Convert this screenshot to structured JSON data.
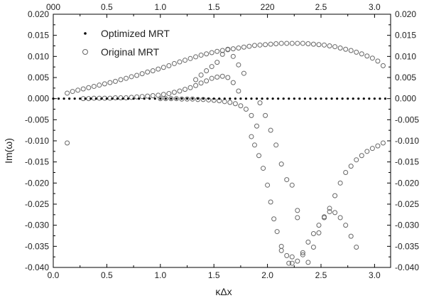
{
  "chart_data": {
    "type": "scatter",
    "xlabel": "κΔx",
    "ylabel": "Im(ω)",
    "xlim": [
      0.0,
      3.15
    ],
    "ylim": [
      -0.04,
      0.02
    ],
    "x_ticks": [
      "0.0",
      "0.5",
      "1.0",
      "1.5",
      "2.0",
      "2.5",
      "3.0"
    ],
    "x_tick_values": [
      0.0,
      0.5,
      1.0,
      1.5,
      2.0,
      2.5,
      3.0
    ],
    "top_ticks": [
      "0.0",
      "0.5",
      "1.0",
      "1.5",
      "2.0",
      "2.5",
      "3.0"
    ],
    "top_tick_display": [
      "000",
      "0.5",
      "1.0",
      "1.5",
      "220",
      "2.5",
      "3.0"
    ],
    "y_ticks": [
      "0.020",
      "0.015",
      "0.010",
      "0.005",
      "0.000",
      "-0.005",
      "-0.010",
      "-0.015",
      "-0.020",
      "-0.025",
      "-0.030",
      "-0.035",
      "-0.040"
    ],
    "y_tick_values": [
      0.02,
      0.015,
      0.01,
      0.005,
      0.0,
      -0.005,
      -0.01,
      -0.015,
      -0.02,
      -0.025,
      -0.03,
      -0.035,
      -0.04
    ],
    "grid": false,
    "legend_position": "top-left",
    "series": [
      {
        "name": "Optimized MRT",
        "marker": "filled-dot",
        "color": "#000000",
        "x": [
          0.0,
          0.05,
          0.1,
          0.15,
          0.2,
          0.25,
          0.3,
          0.35,
          0.4,
          0.45,
          0.5,
          0.55,
          0.6,
          0.65,
          0.7,
          0.75,
          0.8,
          0.85,
          0.9,
          0.95,
          1.0,
          1.05,
          1.1,
          1.15,
          1.2,
          1.25,
          1.3,
          1.35,
          1.4,
          1.45,
          1.5,
          1.55,
          1.6,
          1.65,
          1.7,
          1.75,
          1.8,
          1.85,
          1.9,
          1.95,
          2.0,
          2.05,
          2.1,
          2.15,
          2.2,
          2.25,
          2.3,
          2.35,
          2.4,
          2.45,
          2.5,
          2.55,
          2.6,
          2.65,
          2.7,
          2.75,
          2.8,
          2.85,
          2.9,
          2.95,
          3.0,
          3.05,
          3.1
        ],
        "y": [
          0,
          0,
          0,
          0,
          0,
          0,
          0,
          0,
          0,
          0,
          0,
          0,
          0,
          0,
          0,
          0,
          0,
          0,
          0,
          0,
          0,
          0,
          0,
          0,
          0,
          0,
          0,
          0,
          0,
          0,
          0,
          0,
          0,
          0,
          0,
          0,
          0,
          0,
          0,
          0,
          0,
          0,
          0,
          0,
          0,
          0,
          0,
          0,
          0,
          0,
          0,
          0,
          0,
          0,
          0,
          0,
          0,
          0,
          0,
          0,
          0,
          0,
          0
        ]
      },
      {
        "name": "Original MRT",
        "marker": "open-circle",
        "color": "#666666",
        "points": [
          [
            0.13,
            -0.0105
          ],
          [
            0.13,
            0.0013
          ],
          [
            0.18,
            0.0017
          ],
          [
            0.23,
            0.002
          ],
          [
            0.28,
            0.0023
          ],
          [
            0.33,
            0.0026
          ],
          [
            0.38,
            0.0029
          ],
          [
            0.43,
            0.0032
          ],
          [
            0.48,
            0.0035
          ],
          [
            0.53,
            0.0038
          ],
          [
            0.58,
            0.0041
          ],
          [
            0.63,
            0.0045
          ],
          [
            0.68,
            0.0048
          ],
          [
            0.73,
            0.0052
          ],
          [
            0.78,
            0.0055
          ],
          [
            0.83,
            0.0059
          ],
          [
            0.88,
            0.0063
          ],
          [
            0.93,
            0.0066
          ],
          [
            0.98,
            0.007
          ],
          [
            1.03,
            0.0074
          ],
          [
            1.08,
            0.0078
          ],
          [
            1.13,
            0.0083
          ],
          [
            1.18,
            0.0087
          ],
          [
            1.23,
            0.0091
          ],
          [
            1.28,
            0.0095
          ],
          [
            1.33,
            0.0099
          ],
          [
            1.38,
            0.0103
          ],
          [
            1.43,
            0.0106
          ],
          [
            1.48,
            0.0109
          ],
          [
            1.53,
            0.0112
          ],
          [
            1.58,
            0.0114
          ],
          [
            1.63,
            0.0116
          ],
          [
            1.68,
            0.0118
          ],
          [
            1.73,
            0.012
          ],
          [
            1.78,
            0.0122
          ],
          [
            1.83,
            0.0124
          ],
          [
            1.88,
            0.0126
          ],
          [
            1.93,
            0.0127
          ],
          [
            1.98,
            0.0128
          ],
          [
            2.03,
            0.0129
          ],
          [
            2.08,
            0.013
          ],
          [
            2.13,
            0.0131
          ],
          [
            2.18,
            0.0131
          ],
          [
            2.23,
            0.0131
          ],
          [
            2.28,
            0.0131
          ],
          [
            2.33,
            0.0131
          ],
          [
            2.38,
            0.013
          ],
          [
            2.43,
            0.0129
          ],
          [
            2.48,
            0.0128
          ],
          [
            2.53,
            0.0127
          ],
          [
            2.58,
            0.0125
          ],
          [
            2.63,
            0.0123
          ],
          [
            2.68,
            0.012
          ],
          [
            2.73,
            0.0117
          ],
          [
            2.78,
            0.0114
          ],
          [
            2.83,
            0.011
          ],
          [
            2.88,
            0.0106
          ],
          [
            2.93,
            0.0101
          ],
          [
            2.98,
            0.0096
          ],
          [
            3.03,
            0.0089
          ],
          [
            3.08,
            0.0078
          ],
          [
            0.28,
            0.0
          ],
          [
            0.33,
            0.0
          ],
          [
            0.38,
            0.0001
          ],
          [
            0.43,
            0.0001
          ],
          [
            0.48,
            0.0001
          ],
          [
            0.53,
            0.0001
          ],
          [
            0.58,
            0.0002
          ],
          [
            0.63,
            0.0002
          ],
          [
            0.68,
            0.0002
          ],
          [
            0.73,
            0.0003
          ],
          [
            0.78,
            0.0004
          ],
          [
            0.83,
            0.0005
          ],
          [
            0.88,
            0.0006
          ],
          [
            0.93,
            0.0007
          ],
          [
            0.98,
            0.0008
          ],
          [
            1.03,
            0.001
          ],
          [
            1.08,
            0.0012
          ],
          [
            1.13,
            0.0015
          ],
          [
            1.18,
            0.0018
          ],
          [
            1.23,
            0.0022
          ],
          [
            1.28,
            0.0026
          ],
          [
            1.33,
            0.0031
          ],
          [
            1.38,
            0.0037
          ],
          [
            1.43,
            0.0042
          ],
          [
            1.48,
            0.0048
          ],
          [
            1.53,
            0.0051
          ],
          [
            1.58,
            0.0053
          ],
          [
            1.63,
            0.005
          ],
          [
            1.68,
            0.0038
          ],
          [
            1.73,
            0.0018
          ],
          [
            1.33,
            0.0045
          ],
          [
            1.38,
            0.0056
          ],
          [
            1.43,
            0.0066
          ],
          [
            1.48,
            0.0076
          ],
          [
            1.53,
            0.0086
          ],
          [
            1.58,
            0.0105
          ],
          [
            1.63,
            0.0117
          ],
          [
            1.68,
            0.01
          ],
          [
            1.73,
            0.008
          ],
          [
            1.78,
            0.006
          ],
          [
            1.0,
            0.0
          ],
          [
            1.05,
            0.0
          ],
          [
            1.1,
            0.0
          ],
          [
            1.15,
            0.0
          ],
          [
            1.2,
            -0.0001
          ],
          [
            1.25,
            -0.0001
          ],
          [
            1.3,
            -0.0001
          ],
          [
            1.35,
            -0.0002
          ],
          [
            1.4,
            -0.0002
          ],
          [
            1.45,
            -0.0003
          ],
          [
            1.5,
            -0.0004
          ],
          [
            1.55,
            -0.0005
          ],
          [
            1.6,
            -0.0007
          ],
          [
            1.65,
            -0.0009
          ],
          [
            1.7,
            -0.0012
          ],
          [
            1.75,
            -0.0017
          ],
          [
            1.8,
            -0.0025
          ],
          [
            1.85,
            -0.004
          ],
          [
            1.9,
            -0.0065
          ],
          [
            1.85,
            -0.009
          ],
          [
            1.88,
            -0.011
          ],
          [
            1.92,
            -0.0135
          ],
          [
            1.96,
            -0.0165
          ],
          [
            2.0,
            -0.0205
          ],
          [
            2.03,
            -0.0245
          ],
          [
            2.06,
            -0.0285
          ],
          [
            2.09,
            -0.0315
          ],
          [
            2.13,
            -0.035
          ],
          [
            2.13,
            -0.036
          ],
          [
            2.18,
            -0.0372
          ],
          [
            2.23,
            -0.039
          ],
          [
            1.93,
            -0.001
          ],
          [
            1.98,
            -0.004
          ],
          [
            2.03,
            -0.0075
          ],
          [
            2.08,
            -0.011
          ],
          [
            2.13,
            -0.0155
          ],
          [
            2.18,
            -0.0192
          ],
          [
            2.23,
            -0.0205
          ],
          [
            2.28,
            -0.0265
          ],
          [
            2.33,
            -0.037
          ],
          [
            2.38,
            -0.0388
          ],
          [
            2.43,
            -0.0352
          ],
          [
            2.48,
            -0.0318
          ],
          [
            2.53,
            -0.028
          ],
          [
            2.58,
            -0.026
          ],
          [
            2.63,
            -0.023
          ],
          [
            2.68,
            -0.02
          ],
          [
            2.73,
            -0.0175
          ],
          [
            2.78,
            -0.016
          ],
          [
            2.83,
            -0.0145
          ],
          [
            2.88,
            -0.0135
          ],
          [
            2.93,
            -0.0125
          ],
          [
            2.98,
            -0.0118
          ],
          [
            3.03,
            -0.0112
          ],
          [
            3.08,
            -0.0105
          ],
          [
            2.28,
            -0.0385
          ],
          [
            2.33,
            -0.0365
          ],
          [
            2.38,
            -0.034
          ],
          [
            2.43,
            -0.032
          ],
          [
            2.48,
            -0.03
          ],
          [
            2.53,
            -0.0282
          ],
          [
            2.58,
            -0.0268
          ],
          [
            2.63,
            -0.027
          ],
          [
            2.68,
            -0.0282
          ],
          [
            2.73,
            -0.03
          ],
          [
            2.78,
            -0.0326
          ],
          [
            2.83,
            -0.0352
          ],
          [
            2.28,
            -0.0282
          ],
          [
            2.23,
            -0.0375
          ],
          [
            2.2,
            -0.039
          ]
        ]
      }
    ]
  }
}
